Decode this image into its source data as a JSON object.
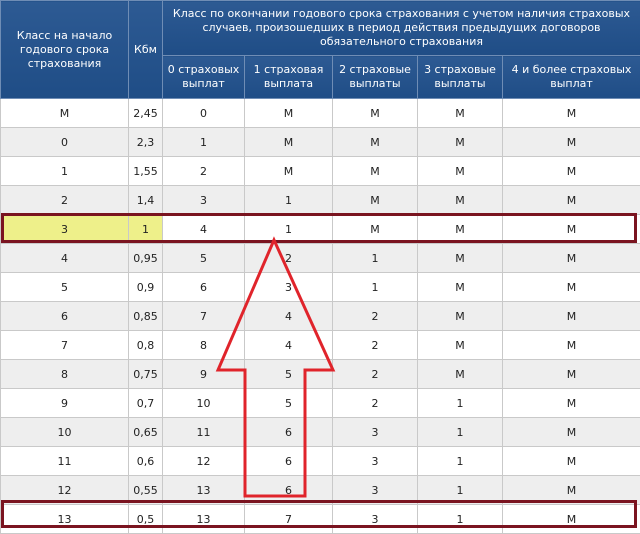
{
  "header": {
    "col_class_start": "Класс на начало годового срока страхования",
    "col_kbm": "Кбм",
    "col_group": "Класс по окончании годового срока страхования с учетом наличия страховых случаев, произошедших в период действия предыдущих договоров обязательного страхования",
    "sub": [
      "0 страховых выплат",
      "1 страховая выплата",
      "2 страховые выплаты",
      "3 страховые выплаты",
      "4 и более страховых выплат"
    ]
  },
  "rows": [
    [
      "М",
      "2,45",
      "0",
      "М",
      "М",
      "М",
      "М"
    ],
    [
      "0",
      "2,3",
      "1",
      "М",
      "М",
      "М",
      "М"
    ],
    [
      "1",
      "1,55",
      "2",
      "М",
      "М",
      "М",
      "М"
    ],
    [
      "2",
      "1,4",
      "3",
      "1",
      "М",
      "М",
      "М"
    ],
    [
      "3",
      "1",
      "4",
      "1",
      "М",
      "М",
      "М"
    ],
    [
      "4",
      "0,95",
      "5",
      "2",
      "1",
      "М",
      "М"
    ],
    [
      "5",
      "0,9",
      "6",
      "3",
      "1",
      "М",
      "М"
    ],
    [
      "6",
      "0,85",
      "7",
      "4",
      "2",
      "М",
      "М"
    ],
    [
      "7",
      "0,8",
      "8",
      "4",
      "2",
      "М",
      "М"
    ],
    [
      "8",
      "0,75",
      "9",
      "5",
      "2",
      "М",
      "М"
    ],
    [
      "9",
      "0,7",
      "10",
      "5",
      "2",
      "1",
      "М"
    ],
    [
      "10",
      "0,65",
      "11",
      "6",
      "3",
      "1",
      "М"
    ],
    [
      "11",
      "0,6",
      "12",
      "6",
      "3",
      "1",
      "М"
    ],
    [
      "12",
      "0,55",
      "13",
      "6",
      "3",
      "1",
      "М"
    ],
    [
      "13",
      "0,5",
      "13",
      "7",
      "3",
      "1",
      "М"
    ]
  ],
  "highlight_row": "3",
  "colors": {
    "header_bg": "#1f4d86",
    "box_border": "#7a1420",
    "arrow": "#e0242b",
    "cell_highlight": "#eef08a"
  }
}
